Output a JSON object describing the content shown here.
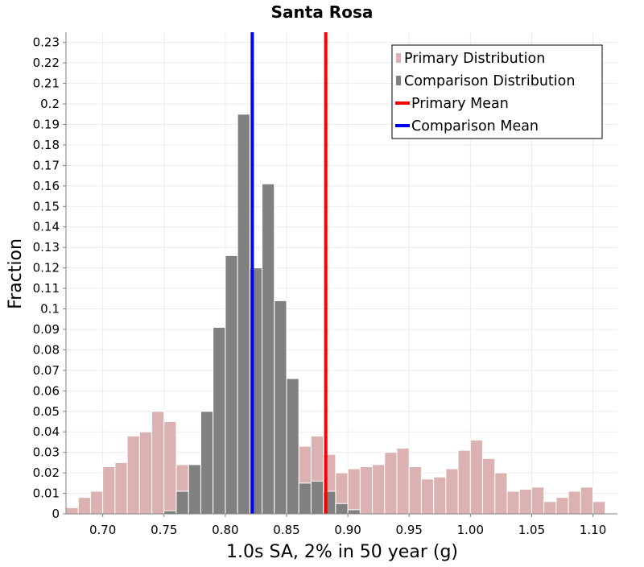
{
  "chart_data": {
    "type": "bar",
    "title": "Santa Rosa",
    "xlabel": "1.0s SA, 2% in 50 year (g)",
    "ylabel": "Fraction",
    "xlim": [
      0.67,
      1.12
    ],
    "ylim": [
      0,
      0.235
    ],
    "bin_width": 0.01,
    "x_ticks": [
      "0.70",
      "0.75",
      "0.80",
      "0.85",
      "0.90",
      "0.95",
      "1.00",
      "1.05",
      "1.10"
    ],
    "y_ticks": [
      "0",
      "0.01",
      "0.02",
      "0.03",
      "0.04",
      "0.05",
      "0.06",
      "0.07",
      "0.08",
      "0.09",
      "0.1",
      "0.11",
      "0.12",
      "0.13",
      "0.14",
      "0.15",
      "0.16",
      "0.17",
      "0.18",
      "0.19",
      "0.2",
      "0.21",
      "0.22",
      "0.23"
    ],
    "grid": true,
    "legend_position": "top-right",
    "series": [
      {
        "name": "Primary Distribution",
        "kind": "histogram",
        "color": "#dbb1b1",
        "x": [
          0.675,
          0.685,
          0.695,
          0.705,
          0.715,
          0.725,
          0.735,
          0.745,
          0.755,
          0.765,
          0.775,
          0.785,
          0.795,
          0.805,
          0.815,
          0.825,
          0.835,
          0.845,
          0.855,
          0.865,
          0.875,
          0.885,
          0.895,
          0.905,
          0.915,
          0.925,
          0.935,
          0.945,
          0.955,
          0.965,
          0.975,
          0.985,
          0.995,
          1.005,
          1.015,
          1.025,
          1.035,
          1.045,
          1.055,
          1.065,
          1.075,
          1.085,
          1.095,
          1.105
        ],
        "values": [
          0.003,
          0.008,
          0.011,
          0.023,
          0.025,
          0.038,
          0.04,
          0.05,
          0.045,
          0.024,
          0.024,
          0.022,
          0.014,
          0.01,
          0.005,
          0.007,
          0.01,
          0.012,
          0.01,
          0.033,
          0.038,
          0.029,
          0.02,
          0.022,
          0.023,
          0.024,
          0.03,
          0.032,
          0.023,
          0.017,
          0.018,
          0.022,
          0.031,
          0.036,
          0.027,
          0.02,
          0.011,
          0.012,
          0.013,
          0.006,
          0.008,
          0.011,
          0.013,
          0.006
        ]
      },
      {
        "name": "Comparison Distribution",
        "kind": "histogram",
        "color": "#808080",
        "x": [
          0.755,
          0.765,
          0.775,
          0.785,
          0.795,
          0.805,
          0.815,
          0.825,
          0.835,
          0.845,
          0.855,
          0.865,
          0.875,
          0.885,
          0.895,
          0.905
        ],
        "values": [
          0.0015,
          0.011,
          0.024,
          0.05,
          0.091,
          0.126,
          0.195,
          0.12,
          0.161,
          0.104,
          0.066,
          0.015,
          0.016,
          0.011,
          0.005,
          0.002
        ]
      },
      {
        "name": "Primary Mean",
        "kind": "vline",
        "color": "#ff0000",
        "x": 0.882
      },
      {
        "name": "Comparison Mean",
        "kind": "vline",
        "color": "#0000ff",
        "x": 0.822
      }
    ]
  }
}
